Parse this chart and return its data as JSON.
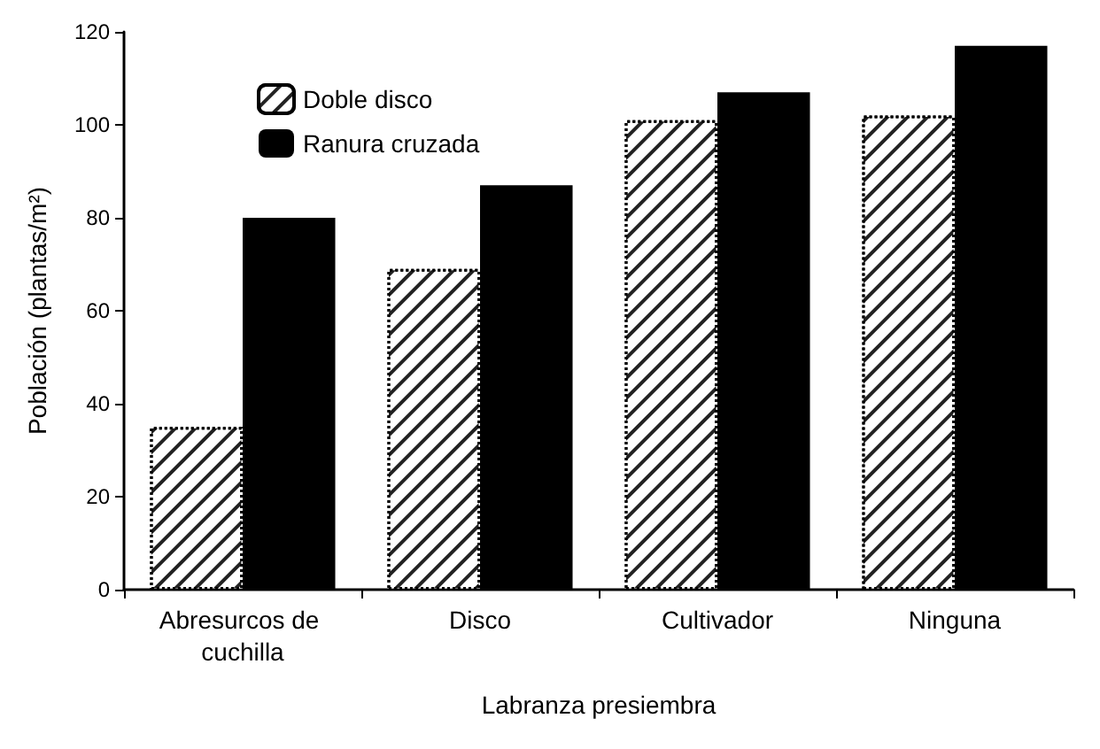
{
  "chart_data": {
    "type": "bar",
    "xlabel": "Labranza presiembra",
    "ylabel": "Población (plantas/m²)",
    "categories": [
      "Abresurcos de cuchilla",
      "Disco",
      "Cultivador",
      "Ninguna"
    ],
    "series": [
      {
        "name": "Doble disco",
        "color": "#ffffff",
        "values": [
          35,
          69,
          101,
          102
        ]
      },
      {
        "name": "Ranura cruzada",
        "color": "#000000",
        "values": [
          80,
          87,
          107,
          117
        ]
      }
    ],
    "ylim": [
      0,
      120
    ],
    "yticks": [
      0,
      20,
      40,
      60,
      80,
      100,
      120
    ],
    "grid": false,
    "legend": "top left"
  }
}
